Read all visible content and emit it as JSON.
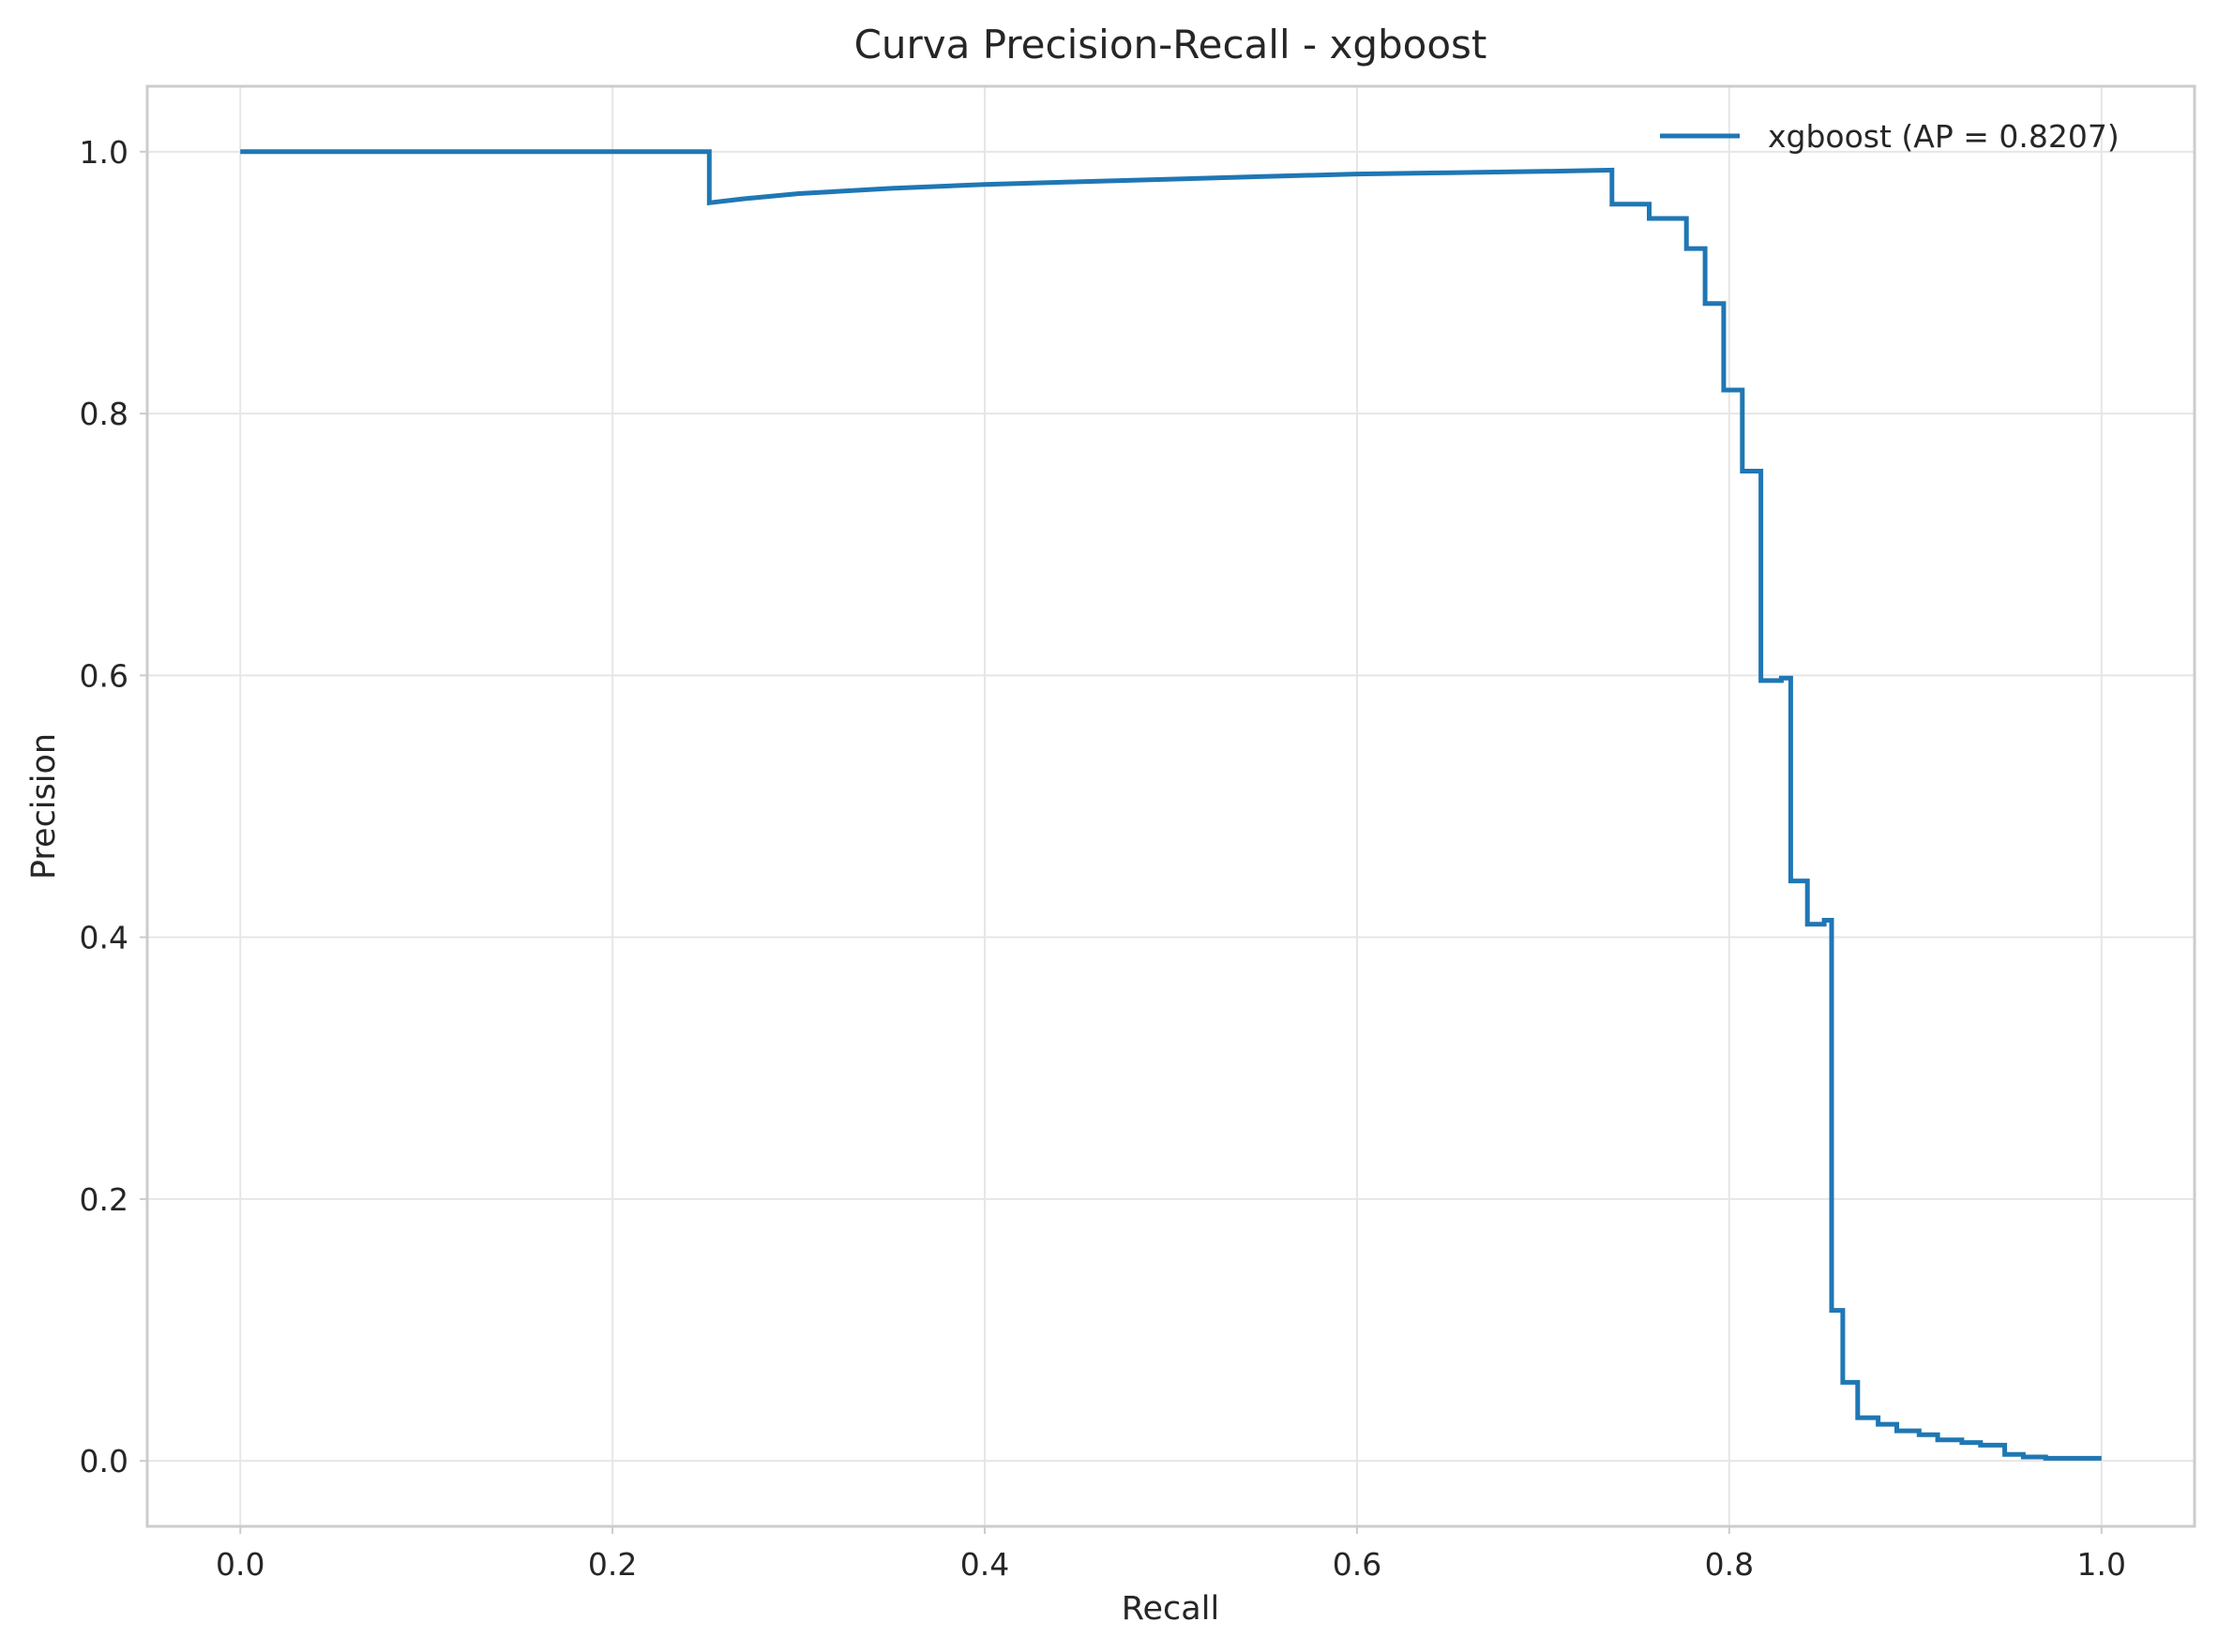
{
  "chart_data": {
    "type": "line",
    "title": "Curva Precision-Recall - xgboost",
    "xlabel": "Recall",
    "ylabel": "Precision",
    "xlim": [
      -0.05,
      1.05
    ],
    "ylim": [
      -0.05,
      1.05
    ],
    "xticks": [
      "0.0",
      "0.2",
      "0.4",
      "0.6",
      "0.8",
      "1.0"
    ],
    "yticks": [
      "0.0",
      "0.2",
      "0.4",
      "0.6",
      "0.8",
      "1.0"
    ],
    "grid": true,
    "legend_position": "top-right",
    "series": [
      {
        "name": "xgboost (AP = 0.8207)",
        "color": "#1f77b4",
        "x": [
          0.0,
          0.252,
          0.252,
          0.27,
          0.3,
          0.35,
          0.4,
          0.45,
          0.5,
          0.55,
          0.6,
          0.65,
          0.7,
          0.737,
          0.737,
          0.757,
          0.757,
          0.777,
          0.777,
          0.787,
          0.787,
          0.797,
          0.797,
          0.807,
          0.807,
          0.817,
          0.817,
          0.828,
          0.828,
          0.833,
          0.833,
          0.842,
          0.842,
          0.851,
          0.851,
          0.855,
          0.855,
          0.861,
          0.861,
          0.869,
          0.869,
          0.88,
          0.88,
          0.89,
          0.89,
          0.902,
          0.902,
          0.912,
          0.912,
          0.925,
          0.925,
          0.935,
          0.935,
          0.948,
          0.948,
          0.958,
          0.958,
          0.97,
          0.97,
          0.985,
          0.985,
          1.0
        ],
        "y": [
          1.0,
          1.0,
          0.961,
          0.964,
          0.968,
          0.972,
          0.975,
          0.977,
          0.979,
          0.981,
          0.983,
          0.984,
          0.985,
          0.986,
          0.96,
          0.96,
          0.949,
          0.949,
          0.926,
          0.926,
          0.884,
          0.884,
          0.818,
          0.818,
          0.756,
          0.756,
          0.596,
          0.596,
          0.598,
          0.598,
          0.443,
          0.443,
          0.41,
          0.41,
          0.413,
          0.413,
          0.115,
          0.115,
          0.06,
          0.06,
          0.033,
          0.033,
          0.028,
          0.028,
          0.023,
          0.023,
          0.02,
          0.02,
          0.016,
          0.016,
          0.014,
          0.014,
          0.012,
          0.012,
          0.005,
          0.005,
          0.003,
          0.003,
          0.002,
          0.002,
          0.002,
          0.002
        ]
      }
    ]
  }
}
